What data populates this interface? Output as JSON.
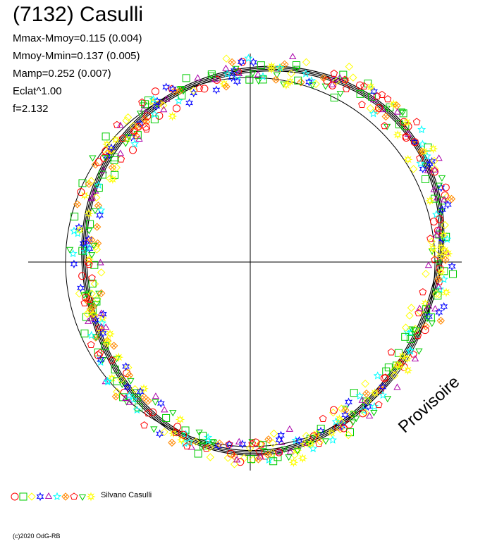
{
  "chart_data": {
    "type": "scatter",
    "title": "(7132) Casulli",
    "stats": [
      "Mmax-Mmoy=0.115 (0.004)",
      "Mmoy-Mmin=0.137 (0.005)",
      "Mamp=0.252 (0.007)",
      "Eclat^1.00",
      "f=2.132"
    ],
    "legend": {
      "observer": "Silvano Casulli",
      "marker_shapes": [
        "circle",
        "square",
        "diamond",
        "star6",
        "triangle",
        "star5",
        "diamond-x",
        "pentagon",
        "triangle-down",
        "star8"
      ],
      "colors": [
        "#ff0000",
        "#00cc00",
        "#ffff00",
        "#0000ff",
        "#aa00aa",
        "#00ffff",
        "#ff8800",
        "#ff0000",
        "#00cc00",
        "#ffff00"
      ]
    },
    "watermark": "Provisoire",
    "copyright": "(c)2020 OdG-RB",
    "polar": {
      "reference_circle": true,
      "axes": "cross through center",
      "mean_curve_color": "#000000"
    }
  }
}
